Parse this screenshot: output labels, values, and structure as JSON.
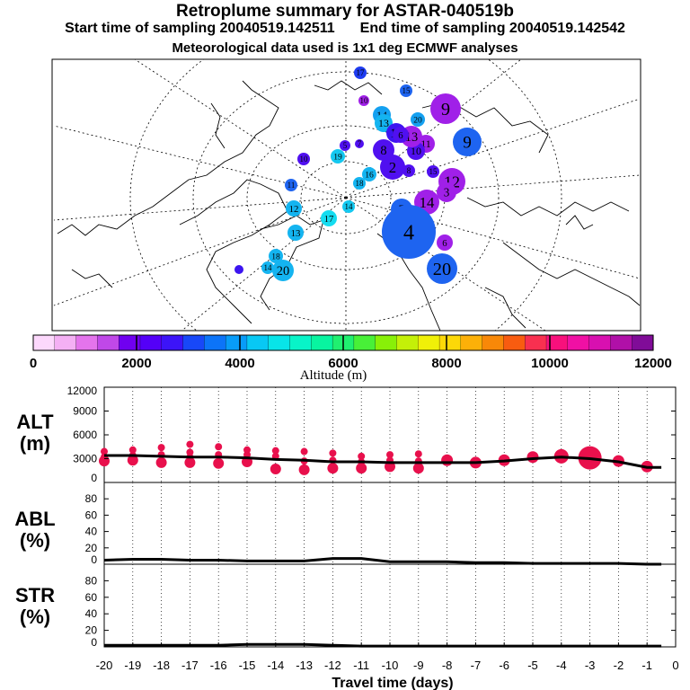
{
  "header": {
    "title": "Retroplume summary for ASTAR-040519b",
    "start_label": "Start time of sampling 20040519.142511",
    "end_label": "End time of sampling 20040519.142542",
    "met_label": "Meteorological data used is 1x1 deg ECMWF analyses"
  },
  "colorbar": {
    "title": "Altitude (m)",
    "ticks": [
      "0",
      "2000",
      "4000",
      "6000",
      "8000",
      "10000",
      "12000"
    ],
    "colors": [
      "#fcd8fc",
      "#f4b0f4",
      "#e474ec",
      "#c048e8",
      "#7000f0",
      "#5400f8",
      "#3c14f8",
      "#1848f8",
      "#0c74f8",
      "#089cf8",
      "#08c8f4",
      "#08e4e8",
      "#08f4c8",
      "#08f4a0",
      "#20f070",
      "#48f038",
      "#88f008",
      "#c4f008",
      "#f0f008",
      "#fcd808",
      "#fcb008",
      "#f88808",
      "#f85c10",
      "#f83050",
      "#f8107c",
      "#f010a4",
      "#d810b0",
      "#b010a8",
      "#800c98"
    ]
  },
  "map": {
    "plumes": [
      {
        "label": "17",
        "color": "#1e3cf0"
      },
      {
        "label": "15",
        "color": "#1e64f0"
      },
      {
        "label": "9",
        "color": "#a020e8"
      },
      {
        "label": "10",
        "color": "#a020e8"
      },
      {
        "label": "14",
        "color": "#14a0f0"
      },
      {
        "label": "13",
        "color": "#14b4f0"
      },
      {
        "label": "20",
        "color": "#14a0f0"
      },
      {
        "label": "18",
        "color": "#3c14f0"
      },
      {
        "label": "9",
        "color": "#1e64f0"
      },
      {
        "label": "11",
        "color": "#a020e8"
      },
      {
        "label": "10",
        "color": "#5010f0"
      },
      {
        "label": "13",
        "color": "#a020e8"
      },
      {
        "label": "6",
        "color": "#5010f0"
      },
      {
        "label": "5",
        "color": "#5010f0"
      },
      {
        "label": "19",
        "color": "#14c8f0"
      },
      {
        "label": "10",
        "color": "#5010f0"
      },
      {
        "label": "8",
        "color": "#5010f0"
      },
      {
        "label": "2",
        "color": "#5010f0"
      },
      {
        "label": "16",
        "color": "#14b4f0"
      },
      {
        "label": "18",
        "color": "#14b4f0"
      },
      {
        "label": "12",
        "color": "#a020e8"
      },
      {
        "label": "11",
        "color": "#1e64f0"
      },
      {
        "label": "3",
        "color": "#a020e8"
      },
      {
        "label": "14",
        "color": "#a020e8"
      },
      {
        "label": "5",
        "color": "#1e64f0"
      },
      {
        "label": "14",
        "color": "#14c8f0"
      },
      {
        "label": "12",
        "color": "#14b4f0"
      },
      {
        "label": "17",
        "color": "#14dcf0"
      },
      {
        "label": "4",
        "color": "#1e64f0"
      },
      {
        "label": "13",
        "color": "#14b4f0"
      },
      {
        "label": "6",
        "color": "#a020e8"
      },
      {
        "label": "18",
        "color": "#14b4f0"
      },
      {
        "label": "14",
        "color": "#14b4f0"
      },
      {
        "label": "20",
        "color": "#14b4f0"
      },
      {
        "label": "20",
        "color": "#1e64f0"
      },
      {
        "label": "7",
        "color": "#5010f0"
      },
      {
        "label": "8",
        "color": "#5010f0"
      },
      {
        "label": "15",
        "color": "#5010f0"
      },
      {
        "label": "",
        "color": "#3c14f0"
      }
    ]
  },
  "panels": {
    "alt": {
      "label_line1": "ALT",
      "label_line2": "(m)",
      "yticks": [
        "0",
        "3000",
        "6000",
        "9000",
        "12000"
      ],
      "ymax": 12000
    },
    "abl": {
      "label_line1": "ABL",
      "label_line2": "(%)",
      "yticks": [
        "0",
        "20",
        "40",
        "60",
        "80"
      ],
      "ymax": 100
    },
    "str": {
      "label_line1": "STR",
      "label_line2": "(%)",
      "yticks": [
        "0",
        "20",
        "40",
        "60",
        "80"
      ],
      "ymax": 100
    },
    "x_title": "Travel time (days)",
    "xticks": [
      "-20",
      "-19",
      "-18",
      "-17",
      "-16",
      "-15",
      "-14",
      "-13",
      "-12",
      "-11",
      "-10",
      "-9",
      "-8",
      "-7",
      "-6",
      "-5",
      "-4",
      "-3",
      "-2",
      "-1",
      "0"
    ]
  },
  "chart_data": {
    "type": "line",
    "x": [
      -20,
      -19,
      -18,
      -17,
      -16,
      -15,
      -14,
      -13,
      -12,
      -11,
      -10,
      -9,
      -8,
      -7,
      -6,
      -5,
      -4,
      -3,
      -2,
      -1,
      -0.5
    ],
    "xlabel": "Travel time (days)",
    "xlim": [
      -20,
      0
    ],
    "series": [
      {
        "name": "ALT (m)",
        "values": [
          3400,
          3400,
          3300,
          3200,
          3200,
          3100,
          2900,
          2800,
          2600,
          2600,
          2500,
          2500,
          2500,
          2500,
          2700,
          3000,
          3200,
          3000,
          2600,
          1900,
          1900
        ],
        "ylim": [
          0,
          12000
        ]
      },
      {
        "name": "ABL (%)",
        "values": [
          5,
          6,
          6,
          5,
          5,
          4,
          4,
          4,
          7,
          7,
          3,
          3,
          3,
          2,
          2,
          1,
          1,
          1,
          1,
          0,
          0
        ],
        "ylim": [
          0,
          100
        ]
      },
      {
        "name": "STR (%)",
        "values": [
          2,
          2,
          2,
          2,
          2,
          3,
          3,
          3,
          2,
          1,
          1,
          1,
          1,
          1,
          1,
          1,
          1,
          1,
          1,
          1,
          1
        ],
        "ylim": [
          0,
          100
        ]
      }
    ],
    "alt_spread": [
      {
        "x": -20,
        "alt": [
          3900,
          3200,
          2700
        ]
      },
      {
        "x": -19,
        "alt": [
          4100,
          3400,
          2800
        ]
      },
      {
        "x": -18,
        "alt": [
          4400,
          3500,
          2500
        ]
      },
      {
        "x": -17,
        "alt": [
          4800,
          3800,
          3200,
          2500
        ]
      },
      {
        "x": -16,
        "alt": [
          4500,
          3500,
          2400
        ]
      },
      {
        "x": -15,
        "alt": [
          4100,
          3500,
          2600
        ]
      },
      {
        "x": -14,
        "alt": [
          4000,
          3300,
          1700
        ]
      },
      {
        "x": -13,
        "alt": [
          3900,
          2700,
          1600
        ]
      },
      {
        "x": -12,
        "alt": [
          3700,
          2800,
          1800
        ]
      },
      {
        "x": -11,
        "alt": [
          3300,
          2600,
          1800
        ]
      },
      {
        "x": -10,
        "alt": [
          3500,
          2800,
          2000
        ]
      },
      {
        "x": -9,
        "alt": [
          3600,
          2700,
          1800
        ]
      },
      {
        "x": -8,
        "alt": [
          2800
        ]
      },
      {
        "x": -7,
        "alt": [
          2500
        ]
      },
      {
        "x": -6,
        "alt": [
          2800
        ]
      },
      {
        "x": -5,
        "alt": [
          3200
        ]
      },
      {
        "x": -4,
        "alt": [
          3300
        ]
      },
      {
        "x": -3,
        "alt": [
          3100
        ]
      },
      {
        "x": -2,
        "alt": [
          2700
        ]
      },
      {
        "x": -1,
        "alt": [
          2000
        ]
      }
    ]
  }
}
